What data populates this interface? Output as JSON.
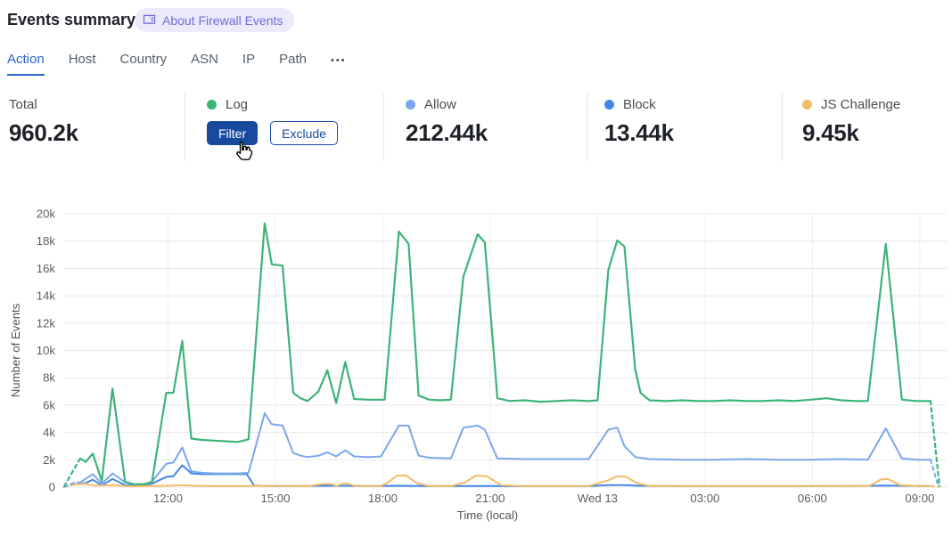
{
  "header": {
    "title": "Events summary",
    "badge_label": "About Firewall Events"
  },
  "tabs": {
    "items": [
      {
        "label": "Action",
        "active": true
      },
      {
        "label": "Host",
        "active": false
      },
      {
        "label": "Country",
        "active": false
      },
      {
        "label": "ASN",
        "active": false
      },
      {
        "label": "IP",
        "active": false
      },
      {
        "label": "Path",
        "active": false
      }
    ],
    "more_label": "•••"
  },
  "stats": {
    "total": {
      "label": "Total",
      "value": "960.2k"
    },
    "log": {
      "label": "Log",
      "color": "#3cb478",
      "filter_label": "Filter",
      "exclude_label": "Exclude"
    },
    "allow": {
      "label": "Allow",
      "value": "212.44k",
      "color": "#7ba7ea"
    },
    "block": {
      "label": "Block",
      "value": "13.44k",
      "color": "#4187e5"
    },
    "js_challenge": {
      "label": "JS Challenge",
      "value": "9.45k",
      "color": "#f2bc66"
    }
  },
  "chart_data": {
    "type": "line",
    "xlabel": "Time (local)",
    "ylabel": "Number of Events",
    "x_unit": "decimal_hours_local_starting_Tue",
    "xlim": [
      9.1,
      33.75
    ],
    "ylim_k": [
      0,
      20
    ],
    "grid": true,
    "y_ticks": [
      {
        "v": 0,
        "label": "0"
      },
      {
        "v": 2,
        "label": "2k"
      },
      {
        "v": 4,
        "label": "4k"
      },
      {
        "v": 6,
        "label": "6k"
      },
      {
        "v": 8,
        "label": "8k"
      },
      {
        "v": 10,
        "label": "10k"
      },
      {
        "v": 12,
        "label": "12k"
      },
      {
        "v": 14,
        "label": "14k"
      },
      {
        "v": 16,
        "label": "16k"
      },
      {
        "v": 18,
        "label": "18k"
      },
      {
        "v": 20,
        "label": "20k"
      }
    ],
    "x_ticks": [
      {
        "t": 12,
        "label": "12:00"
      },
      {
        "t": 15,
        "label": "15:00"
      },
      {
        "t": 18,
        "label": "18:00"
      },
      {
        "t": 21,
        "label": "21:00"
      },
      {
        "t": 24,
        "label": "Wed 13"
      },
      {
        "t": 27,
        "label": "03:00"
      },
      {
        "t": 30,
        "label": "06:00"
      },
      {
        "t": 33,
        "label": "09:00"
      }
    ],
    "series": [
      {
        "name": "Block",
        "color": "#4187e5",
        "width": 2,
        "dash_head": 1,
        "dash_tail": 0,
        "points": [
          [
            9.1,
            0.02
          ],
          [
            9.4,
            0.2
          ],
          [
            9.7,
            0.3
          ],
          [
            9.9,
            0.55
          ],
          [
            10.15,
            0.12
          ],
          [
            10.45,
            0.6
          ],
          [
            10.8,
            0.15
          ],
          [
            11.1,
            0.1
          ],
          [
            11.55,
            0.25
          ],
          [
            11.95,
            0.75
          ],
          [
            12.15,
            0.8
          ],
          [
            12.4,
            1.6
          ],
          [
            12.65,
            1.0
          ],
          [
            12.95,
            0.95
          ],
          [
            13.3,
            0.95
          ],
          [
            13.65,
            0.95
          ],
          [
            13.95,
            0.95
          ],
          [
            14.2,
            0.95
          ],
          [
            14.4,
            0.12
          ],
          [
            14.9,
            0.08
          ],
          [
            15.5,
            0.08
          ],
          [
            16.2,
            0.1
          ],
          [
            16.95,
            0.1
          ],
          [
            17.6,
            0.08
          ],
          [
            18.45,
            0.1
          ],
          [
            19.3,
            0.08
          ],
          [
            20.25,
            0.08
          ],
          [
            21.2,
            0.08
          ],
          [
            22.4,
            0.07
          ],
          [
            23.75,
            0.08
          ],
          [
            24.3,
            0.15
          ],
          [
            24.75,
            0.15
          ],
          [
            25.2,
            0.1
          ],
          [
            26.35,
            0.07
          ],
          [
            27.7,
            0.07
          ],
          [
            29.05,
            0.07
          ],
          [
            30.4,
            0.08
          ],
          [
            31.55,
            0.1
          ],
          [
            32.05,
            0.12
          ],
          [
            32.5,
            0.1
          ],
          [
            33.3,
            0.08
          ]
        ]
      },
      {
        "name": "JS Challenge",
        "color": "#f2bc66",
        "width": 2,
        "dash_head": 1,
        "dash_tail": 1,
        "points": [
          [
            9.1,
            0.02
          ],
          [
            9.4,
            0.2
          ],
          [
            9.65,
            0.25
          ],
          [
            9.95,
            0.12
          ],
          [
            10.45,
            0.15
          ],
          [
            10.9,
            0.06
          ],
          [
            11.55,
            0.08
          ],
          [
            11.95,
            0.1
          ],
          [
            12.4,
            0.15
          ],
          [
            12.75,
            0.1
          ],
          [
            13.3,
            0.07
          ],
          [
            13.95,
            0.07
          ],
          [
            14.7,
            0.1
          ],
          [
            15.2,
            0.08
          ],
          [
            15.9,
            0.07
          ],
          [
            16.3,
            0.22
          ],
          [
            16.5,
            0.25
          ],
          [
            16.7,
            0.1
          ],
          [
            16.95,
            0.3
          ],
          [
            17.25,
            0.08
          ],
          [
            17.95,
            0.08
          ],
          [
            18.15,
            0.35
          ],
          [
            18.4,
            0.85
          ],
          [
            18.65,
            0.85
          ],
          [
            18.95,
            0.3
          ],
          [
            19.3,
            0.08
          ],
          [
            19.9,
            0.07
          ],
          [
            20.3,
            0.35
          ],
          [
            20.6,
            0.85
          ],
          [
            20.9,
            0.8
          ],
          [
            21.3,
            0.15
          ],
          [
            21.95,
            0.07
          ],
          [
            22.85,
            0.07
          ],
          [
            23.75,
            0.08
          ],
          [
            24.3,
            0.5
          ],
          [
            24.55,
            0.8
          ],
          [
            24.8,
            0.75
          ],
          [
            25.1,
            0.3
          ],
          [
            25.45,
            0.08
          ],
          [
            26.35,
            0.07
          ],
          [
            27.25,
            0.07
          ],
          [
            28.15,
            0.07
          ],
          [
            29.05,
            0.07
          ],
          [
            29.95,
            0.07
          ],
          [
            30.8,
            0.07
          ],
          [
            31.6,
            0.1
          ],
          [
            31.9,
            0.55
          ],
          [
            32.1,
            0.6
          ],
          [
            32.45,
            0.15
          ],
          [
            33.0,
            0.07
          ],
          [
            33.3,
            0.07
          ],
          [
            33.5,
            0.02
          ]
        ]
      },
      {
        "name": "Allow",
        "color": "#7ba7ea",
        "width": 2,
        "dash_head": 2,
        "dash_tail": 1,
        "points": [
          [
            9.1,
            0.02
          ],
          [
            9.35,
            0.3
          ],
          [
            9.55,
            0.35
          ],
          [
            9.9,
            0.95
          ],
          [
            10.15,
            0.25
          ],
          [
            10.45,
            1.0
          ],
          [
            10.8,
            0.35
          ],
          [
            11.05,
            0.2
          ],
          [
            11.35,
            0.25
          ],
          [
            11.55,
            0.4
          ],
          [
            11.95,
            1.7
          ],
          [
            12.15,
            1.8
          ],
          [
            12.4,
            2.9
          ],
          [
            12.65,
            1.15
          ],
          [
            12.95,
            1.05
          ],
          [
            13.3,
            1.0
          ],
          [
            13.65,
            1.0
          ],
          [
            13.95,
            1.0
          ],
          [
            14.25,
            1.05
          ],
          [
            14.7,
            5.4
          ],
          [
            14.9,
            4.6
          ],
          [
            15.2,
            4.5
          ],
          [
            15.5,
            2.5
          ],
          [
            15.7,
            2.3
          ],
          [
            15.9,
            2.2
          ],
          [
            16.2,
            2.3
          ],
          [
            16.45,
            2.55
          ],
          [
            16.7,
            2.25
          ],
          [
            16.95,
            2.7
          ],
          [
            17.2,
            2.25
          ],
          [
            17.6,
            2.2
          ],
          [
            17.95,
            2.25
          ],
          [
            18.45,
            4.5
          ],
          [
            18.72,
            4.5
          ],
          [
            19.0,
            2.3
          ],
          [
            19.3,
            2.15
          ],
          [
            19.9,
            2.1
          ],
          [
            20.25,
            4.35
          ],
          [
            20.65,
            4.5
          ],
          [
            20.85,
            4.2
          ],
          [
            21.2,
            2.1
          ],
          [
            21.95,
            2.05
          ],
          [
            22.85,
            2.05
          ],
          [
            23.75,
            2.05
          ],
          [
            24.3,
            4.2
          ],
          [
            24.55,
            4.35
          ],
          [
            24.75,
            3.0
          ],
          [
            25.05,
            2.2
          ],
          [
            25.45,
            2.05
          ],
          [
            26.35,
            2.0
          ],
          [
            27.25,
            2.0
          ],
          [
            28.15,
            2.05
          ],
          [
            29.05,
            2.0
          ],
          [
            29.95,
            2.0
          ],
          [
            30.8,
            2.05
          ],
          [
            31.55,
            2.0
          ],
          [
            32.05,
            4.3
          ],
          [
            32.5,
            2.1
          ],
          [
            32.9,
            2.0
          ],
          [
            33.3,
            2.0
          ],
          [
            33.52,
            0.05
          ]
        ]
      },
      {
        "name": "Log",
        "color": "#3cb478",
        "width": 2.2,
        "dash_head": 2,
        "dash_tail": 1,
        "points": [
          [
            9.1,
            0.05
          ],
          [
            9.35,
            1.2
          ],
          [
            9.55,
            2.1
          ],
          [
            9.7,
            1.85
          ],
          [
            9.9,
            2.45
          ],
          [
            10.15,
            0.45
          ],
          [
            10.45,
            7.2
          ],
          [
            10.8,
            0.4
          ],
          [
            11.05,
            0.2
          ],
          [
            11.35,
            0.2
          ],
          [
            11.55,
            0.35
          ],
          [
            11.95,
            6.9
          ],
          [
            12.15,
            6.9
          ],
          [
            12.4,
            10.7
          ],
          [
            12.65,
            3.55
          ],
          [
            12.95,
            3.45
          ],
          [
            13.3,
            3.4
          ],
          [
            13.65,
            3.35
          ],
          [
            13.95,
            3.3
          ],
          [
            14.25,
            3.5
          ],
          [
            14.7,
            19.3
          ],
          [
            14.9,
            16.3
          ],
          [
            15.2,
            16.2
          ],
          [
            15.5,
            6.9
          ],
          [
            15.7,
            6.5
          ],
          [
            15.9,
            6.3
          ],
          [
            16.2,
            7.0
          ],
          [
            16.45,
            8.55
          ],
          [
            16.7,
            6.15
          ],
          [
            16.95,
            9.15
          ],
          [
            17.2,
            6.45
          ],
          [
            17.6,
            6.4
          ],
          [
            18.05,
            6.4
          ],
          [
            18.45,
            18.7
          ],
          [
            18.72,
            17.8
          ],
          [
            19.0,
            6.7
          ],
          [
            19.3,
            6.4
          ],
          [
            19.6,
            6.35
          ],
          [
            19.9,
            6.4
          ],
          [
            20.25,
            15.4
          ],
          [
            20.65,
            18.5
          ],
          [
            20.85,
            17.9
          ],
          [
            21.2,
            6.5
          ],
          [
            21.55,
            6.3
          ],
          [
            21.95,
            6.35
          ],
          [
            22.4,
            6.25
          ],
          [
            22.85,
            6.3
          ],
          [
            23.3,
            6.35
          ],
          [
            23.75,
            6.3
          ],
          [
            24.0,
            6.35
          ],
          [
            24.3,
            15.9
          ],
          [
            24.55,
            18.05
          ],
          [
            24.75,
            17.6
          ],
          [
            25.05,
            8.6
          ],
          [
            25.2,
            6.9
          ],
          [
            25.45,
            6.35
          ],
          [
            25.9,
            6.3
          ],
          [
            26.35,
            6.35
          ],
          [
            26.8,
            6.3
          ],
          [
            27.25,
            6.3
          ],
          [
            27.7,
            6.35
          ],
          [
            28.15,
            6.3
          ],
          [
            28.6,
            6.3
          ],
          [
            29.05,
            6.35
          ],
          [
            29.5,
            6.3
          ],
          [
            29.95,
            6.4
          ],
          [
            30.4,
            6.5
          ],
          [
            30.8,
            6.35
          ],
          [
            31.2,
            6.3
          ],
          [
            31.55,
            6.3
          ],
          [
            32.05,
            17.8
          ],
          [
            32.5,
            6.4
          ],
          [
            32.9,
            6.3
          ],
          [
            33.3,
            6.3
          ],
          [
            33.55,
            0.05
          ]
        ]
      }
    ]
  }
}
